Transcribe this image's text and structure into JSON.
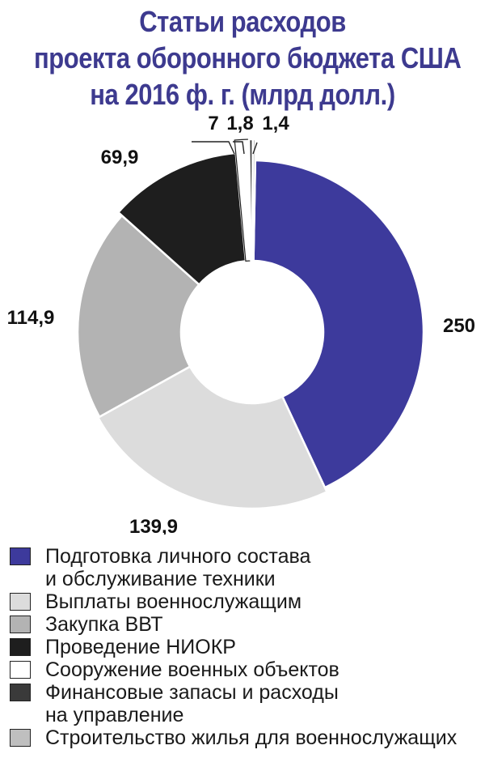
{
  "title_lines": [
    "Статьи расходов",
    "проекта оборонного бюджета США",
    "на 2016 ф. г. (млрд долл.)"
  ],
  "chart_data": {
    "type": "pie",
    "title": "Статьи расходов проекта оборонного бюджета США на 2016 ф. г. (млрд долл.)",
    "donut": true,
    "categories": [
      "Подготовка личного состава и обслуживание техники",
      "Выплаты военнослужащим",
      "Закупка ВВТ",
      "Проведение НИОКР",
      "Сооружение военных объектов",
      "Финансовые запасы и расходы на управление",
      "Строительство жилья для военнослужащих"
    ],
    "values": [
      250,
      139.9,
      114.9,
      69.9,
      7,
      1.8,
      1.4
    ],
    "value_labels": [
      "250",
      "139,9",
      "114,9",
      "69,9",
      "7",
      "1,8",
      "1,4"
    ],
    "colors": [
      "#3d3a9c",
      "#dcdcdc",
      "#b3b3b3",
      "#1e1e1e",
      "#ffffff",
      "#3a3a3a",
      "#bfbfbf"
    ],
    "legend_placement": "bottom"
  },
  "legend": [
    {
      "lines": [
        "Подготовка личного состава",
        "и обслуживание техники"
      ]
    },
    {
      "lines": [
        "Выплаты военнослужащим"
      ]
    },
    {
      "lines": [
        "Закупка ВВТ"
      ]
    },
    {
      "lines": [
        "Проведение НИОКР"
      ]
    },
    {
      "lines": [
        "Сооружение военных объектов"
      ]
    },
    {
      "lines": [
        "Финансовые запасы и расходы",
        "на управление"
      ]
    },
    {
      "lines": [
        "Строительство жилья для военнослужащих"
      ]
    }
  ]
}
